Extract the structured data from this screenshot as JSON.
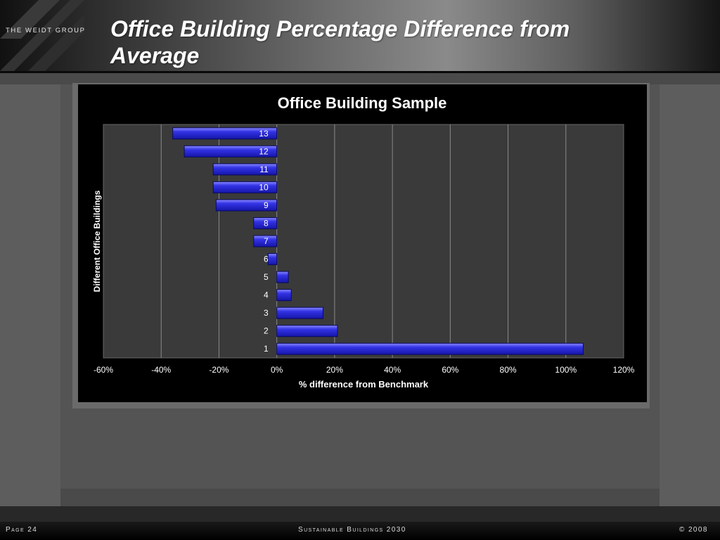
{
  "header": {
    "logo_text": "THE WEIDT GROUP",
    "title": "Office Building Percentage Difference from Average"
  },
  "footer": {
    "page": "Page 24",
    "center": "Sustainable Buildings 2030",
    "copyright": "© 2008"
  },
  "colors": {
    "bar": "#2a2ad8",
    "bar_highlight": "#7a7aff",
    "plot_bg": "#3a3a3a",
    "chart_bg": "#000000",
    "gridline": "#8a8a8a"
  },
  "chart_data": {
    "type": "bar",
    "orientation": "horizontal",
    "title": "Office Building Sample",
    "xlabel": "% difference from Benchmark",
    "ylabel": "Different Office Buildings",
    "categories": [
      "1",
      "2",
      "3",
      "4",
      "5",
      "6",
      "7",
      "8",
      "9",
      "10",
      "11",
      "12",
      "13"
    ],
    "values": [
      106,
      21,
      16,
      5,
      4,
      -3,
      -8,
      -8,
      -21,
      -22,
      -22,
      -32,
      -36
    ],
    "x_ticks": [
      "-60%",
      "-40%",
      "-20%",
      "0%",
      "20%",
      "40%",
      "60%",
      "80%",
      "100%",
      "120%"
    ],
    "xlim": [
      -60,
      120
    ],
    "grid": true,
    "legend": "none"
  }
}
